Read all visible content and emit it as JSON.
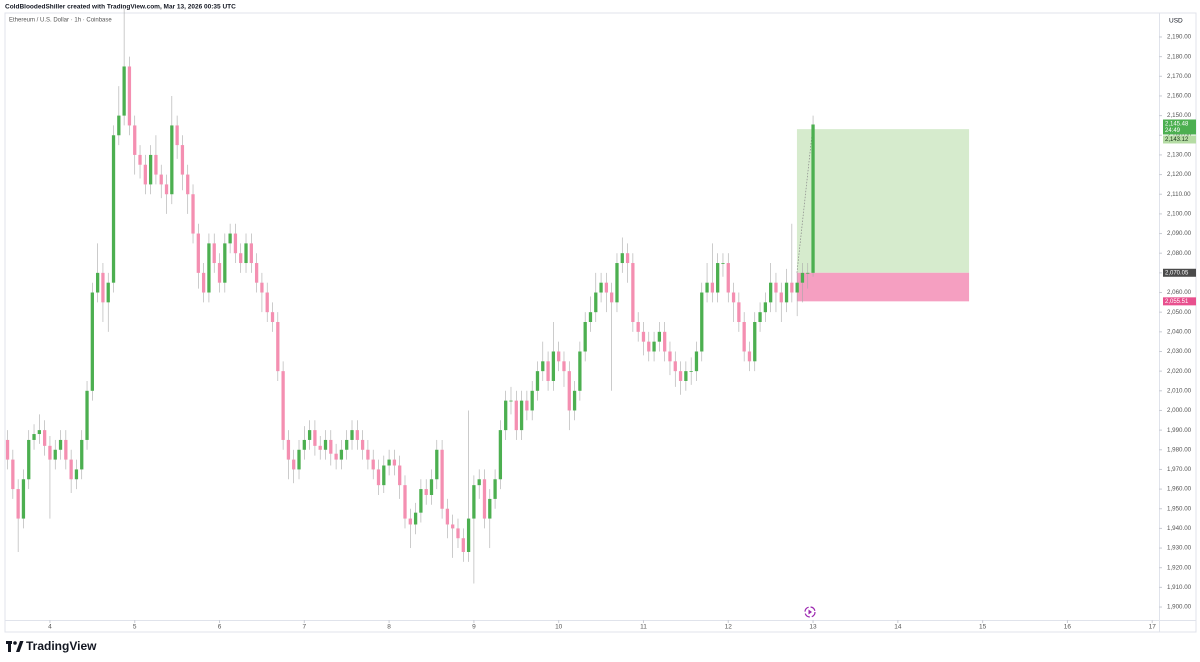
{
  "header": "ColdBloodedShiller created with TradingView.com, Mar 13, 2026 00:35 UTC",
  "chart_data": {
    "type": "candlestick",
    "title": "Ethereum / U.S. Dollar · 1h · Coinbase",
    "y_unit": "USD",
    "x": [
      3.5,
      3.5625,
      3.625,
      3.6875,
      3.75,
      3.8125,
      3.875,
      3.9375,
      4,
      4.0625,
      4.125,
      4.1875,
      4.25,
      4.3125,
      4.375,
      4.4375,
      4.5,
      4.5625,
      4.625,
      4.6875,
      4.75,
      4.8125,
      4.875,
      4.9375,
      5,
      5.0625,
      5.125,
      5.1875,
      5.25,
      5.3125,
      5.375,
      5.4375,
      5.5,
      5.5625,
      5.625,
      5.6875,
      5.75,
      5.8125,
      5.875,
      5.9375,
      6,
      6.0625,
      6.125,
      6.1875,
      6.25,
      6.3125,
      6.375,
      6.4375,
      6.5,
      6.5625,
      6.625,
      6.6875,
      6.75,
      6.8125,
      6.875,
      6.9375,
      7,
      7.0625,
      7.125,
      7.1875,
      7.25,
      7.3125,
      7.375,
      7.4375,
      7.5,
      7.5625,
      7.625,
      7.6875,
      7.75,
      7.8125,
      7.875,
      7.9375,
      8,
      8.0625,
      8.125,
      8.1875,
      8.25,
      8.3125,
      8.375,
      8.4375,
      8.5,
      8.5625,
      8.625,
      8.6875,
      8.75,
      8.8125,
      8.875,
      8.9375,
      9,
      9.0625,
      9.125,
      9.1875,
      9.25,
      9.3125,
      9.375,
      9.4375,
      9.5,
      9.5625,
      9.625,
      9.6875,
      9.75,
      9.8125,
      9.875,
      9.9375,
      10,
      10.0625,
      10.125,
      10.1875,
      10.25,
      10.3125,
      10.375,
      10.4375,
      10.5,
      10.5625,
      10.625,
      10.6875,
      10.75,
      10.8125,
      10.875,
      10.9375,
      11,
      11.0625,
      11.125,
      11.1875,
      11.25,
      11.3125,
      11.375,
      11.4375,
      11.5,
      11.5625,
      11.625,
      11.6875,
      11.75,
      11.8125,
      11.875,
      11.9375,
      12,
      12.0625,
      12.125,
      12.1875,
      12.25,
      12.3125,
      12.375,
      12.4375,
      12.5,
      12.5625,
      12.625,
      12.6875,
      12.75,
      12.8125,
      12.875,
      12.9375,
      13
    ],
    "open": [
      1985,
      1975,
      1960,
      1945,
      1965,
      1985,
      1988,
      1990,
      1982,
      1975,
      1980,
      1985,
      1975,
      1965,
      1970,
      1985,
      2010,
      2060,
      2070,
      2055,
      2065,
      2140,
      2150,
      2175,
      2145,
      2130,
      2125,
      2115,
      2130,
      2120,
      2115,
      2110,
      2145,
      2135,
      2120,
      2110,
      2090,
      2070,
      2060,
      2085,
      2075,
      2065,
      2085,
      2090,
      2080,
      2075,
      2085,
      2075,
      2065,
      2060,
      2050,
      2045,
      2020,
      1985,
      1975,
      1970,
      1980,
      1985,
      1990,
      1982,
      1980,
      1985,
      1978,
      1975,
      1980,
      1985,
      1990,
      1985,
      1980,
      1975,
      1970,
      1962,
      1972,
      1975,
      1972,
      1962,
      1945,
      1942,
      1948,
      1960,
      1957,
      1965,
      1980,
      1950,
      1942,
      1940,
      1935,
      1928,
      1945,
      1962,
      1965,
      1945,
      1955,
      1965,
      1990,
      2005,
      2005,
      1990,
      2005,
      2000,
      2010,
      2020,
      2025,
      2015,
      2030,
      2025,
      2020,
      2000,
      2010,
      2030,
      2045,
      2050,
      2060,
      2065,
      2060,
      2055,
      2075,
      2080,
      2075,
      2045,
      2040,
      2035,
      2030,
      2035,
      2040,
      2030,
      2025,
      2020,
      2015,
      2020,
      2020,
      2030,
      2060,
      2065,
      2060,
      2075,
      2075,
      2060,
      2055,
      2045,
      2030,
      2025,
      2045,
      2050,
      2055,
      2065,
      2060,
      2055,
      2065,
      2060,
      2065,
      2070,
      2070
    ],
    "high": [
      1990,
      1980,
      1965,
      1970,
      1990,
      1993,
      1998,
      1995,
      1987,
      1985,
      1990,
      1990,
      1980,
      1975,
      1990,
      2015,
      2065,
      2085,
      2075,
      2070,
      2145,
      2165,
      2205,
      2180,
      2150,
      2135,
      2130,
      2135,
      2140,
      2125,
      2120,
      2160,
      2150,
      2140,
      2125,
      2115,
      2095,
      2075,
      2090,
      2090,
      2080,
      2090,
      2095,
      2095,
      2085,
      2090,
      2090,
      2080,
      2070,
      2065,
      2055,
      2050,
      2025,
      1990,
      1980,
      1985,
      1992,
      1995,
      1995,
      1987,
      1990,
      1990,
      1983,
      1985,
      1990,
      1995,
      1995,
      1990,
      1985,
      1980,
      1975,
      1977,
      1980,
      1980,
      1977,
      1967,
      1950,
      1953,
      1965,
      1965,
      1970,
      1985,
      1985,
      1955,
      1947,
      1945,
      1940,
      2000,
      1967,
      1970,
      1970,
      1960,
      1970,
      1995,
      2010,
      2012,
      2010,
      2010,
      2010,
      2015,
      2025,
      2035,
      2030,
      2045,
      2035,
      2030,
      2025,
      2015,
      2035,
      2050,
      2058,
      2070,
      2070,
      2070,
      2065,
      2080,
      2088,
      2085,
      2080,
      2050,
      2045,
      2040,
      2040,
      2045,
      2045,
      2035,
      2030,
      2025,
      2025,
      2027,
      2035,
      2065,
      2075,
      2085,
      2080,
      2080,
      2080,
      2065,
      2060,
      2050,
      2035,
      2050,
      2055,
      2060,
      2075,
      2070,
      2065,
      2072,
      2095,
      2070,
      2075,
      2075,
      2150
    ],
    "low": [
      1970,
      1955,
      1928,
      1940,
      1960,
      1980,
      1983,
      1977,
      1945,
      1970,
      1975,
      1970,
      1958,
      1960,
      1965,
      1980,
      2005,
      2055,
      2045,
      2040,
      2060,
      2135,
      2145,
      2140,
      2120,
      2118,
      2110,
      2110,
      2115,
      2108,
      2100,
      2105,
      2128,
      2112,
      2100,
      2085,
      2062,
      2055,
      2055,
      2070,
      2060,
      2060,
      2080,
      2075,
      2070,
      2070,
      2070,
      2060,
      2050,
      2045,
      2040,
      2015,
      1980,
      1965,
      1963,
      1965,
      1975,
      1980,
      1977,
      1975,
      1975,
      1972,
      1970,
      1970,
      1975,
      1980,
      1980,
      1975,
      1970,
      1965,
      1957,
      1958,
      1967,
      1967,
      1955,
      1940,
      1930,
      1937,
      1943,
      1952,
      1952,
      1960,
      1945,
      1935,
      1925,
      1930,
      1923,
      1923,
      1912,
      1955,
      1940,
      1930,
      1950,
      1960,
      1985,
      1998,
      1985,
      1985,
      1995,
      1995,
      2005,
      2015,
      2010,
      2010,
      2020,
      2012,
      1990,
      1995,
      2005,
      2025,
      2040,
      2045,
      2055,
      2050,
      2010,
      2050,
      2070,
      2065,
      2040,
      2035,
      2028,
      2025,
      2025,
      2030,
      2025,
      2018,
      2012,
      2008,
      2010,
      2013,
      2015,
      2025,
      2055,
      2055,
      2055,
      2068,
      2055,
      2045,
      2040,
      2025,
      2020,
      2020,
      2040,
      2045,
      2050,
      2050,
      2045,
      2050,
      2055,
      2048,
      2055,
      2062,
      2068
    ],
    "close": [
      1975,
      1960,
      1945,
      1965,
      1985,
      1988,
      1990,
      1982,
      1975,
      1980,
      1985,
      1975,
      1965,
      1970,
      1985,
      2010,
      2060,
      2070,
      2055,
      2065,
      2140,
      2150,
      2175,
      2145,
      2130,
      2125,
      2115,
      2130,
      2120,
      2115,
      2110,
      2145,
      2135,
      2120,
      2110,
      2090,
      2070,
      2060,
      2085,
      2075,
      2065,
      2085,
      2090,
      2080,
      2075,
      2085,
      2075,
      2065,
      2060,
      2050,
      2045,
      2020,
      1985,
      1975,
      1970,
      1980,
      1985,
      1990,
      1982,
      1980,
      1985,
      1978,
      1975,
      1980,
      1985,
      1990,
      1985,
      1980,
      1975,
      1970,
      1962,
      1972,
      1975,
      1972,
      1962,
      1945,
      1942,
      1948,
      1960,
      1957,
      1965,
      1980,
      1950,
      1942,
      1940,
      1935,
      1928,
      1945,
      1962,
      1965,
      1945,
      1955,
      1965,
      1990,
      2005,
      2005,
      1990,
      2005,
      2000,
      2010,
      2020,
      2025,
      2015,
      2030,
      2025,
      2020,
      2000,
      2010,
      2030,
      2045,
      2050,
      2060,
      2065,
      2060,
      2055,
      2075,
      2080,
      2075,
      2045,
      2040,
      2035,
      2030,
      2035,
      2040,
      2030,
      2025,
      2020,
      2015,
      2020,
      2020,
      2030,
      2060,
      2065,
      2060,
      2075,
      2075,
      2060,
      2055,
      2045,
      2030,
      2025,
      2045,
      2050,
      2055,
      2065,
      2060,
      2055,
      2065,
      2060,
      2065,
      2070,
      2070,
      2145.48
    ],
    "up_color": "#4caf50",
    "down_color": "#f48fb1",
    "wick_color": "#a9a9a9",
    "xlim": [
      3.47,
      17.08
    ],
    "ylim": [
      1893.4,
      2202.2
    ],
    "xticks": [
      4,
      5,
      6,
      7,
      8,
      9,
      10,
      11,
      12,
      13,
      14,
      15,
      16,
      17
    ],
    "yticks": [
      {
        "value": 1900,
        "label": "1,900.00"
      },
      {
        "value": 1910,
        "label": "1,910.00"
      },
      {
        "value": 1920,
        "label": "1,920.00"
      },
      {
        "value": 1930,
        "label": "1,930.00"
      },
      {
        "value": 1940,
        "label": "1,940.00"
      },
      {
        "value": 1950,
        "label": "1,950.00"
      },
      {
        "value": 1960,
        "label": "1,960.00"
      },
      {
        "value": 1970,
        "label": "1,970.00"
      },
      {
        "value": 1980,
        "label": "1,980.00"
      },
      {
        "value": 1990,
        "label": "1,990.00"
      },
      {
        "value": 2000,
        "label": "2,000.00"
      },
      {
        "value": 2010,
        "label": "2,010.00"
      },
      {
        "value": 2020,
        "label": "2,020.00"
      },
      {
        "value": 2030,
        "label": "2,030.00"
      },
      {
        "value": 2040,
        "label": "2,040.00"
      },
      {
        "value": 2050,
        "label": "2,050.00"
      },
      {
        "value": 2060,
        "label": "2,060.00"
      },
      {
        "value": 2070,
        "label": "2,070.00"
      },
      {
        "value": 2080,
        "label": "2,080.00"
      },
      {
        "value": 2090,
        "label": "2,090.00"
      },
      {
        "value": 2100,
        "label": "2,100.00"
      },
      {
        "value": 2110,
        "label": "2,110.00"
      },
      {
        "value": 2120,
        "label": "2,120.00"
      },
      {
        "value": 2130,
        "label": "2,130.00"
      },
      {
        "value": 2140,
        "label": "2,140.00"
      },
      {
        "value": 2150,
        "label": "2,150.00"
      },
      {
        "value": 2160,
        "label": "2,160.00"
      },
      {
        "value": 2170,
        "label": "2,170.00"
      },
      {
        "value": 2180,
        "label": "2,180.00"
      },
      {
        "value": 2190,
        "label": "2,190.00"
      }
    ],
    "grid": false,
    "last_price": {
      "value": 2145.48,
      "label": "2,145.48",
      "countdown": "24:49"
    },
    "position": {
      "x_start": 12.81,
      "x_end": 14.84,
      "entry": {
        "value": 2070.05,
        "label": "2,070.05"
      },
      "target": {
        "value": 2143.12,
        "label": "2,143.12"
      },
      "stop": {
        "value": 2055.51,
        "label": "2,055.51"
      },
      "target_color": "#d6ebcd",
      "stop_color": "#f59fc1",
      "target_label_color": "#b5dca4",
      "entry_label_color": "#4a4a4a",
      "stop_label_color": "#e8508e"
    }
  },
  "footer": {
    "logo": "TradingView"
  }
}
